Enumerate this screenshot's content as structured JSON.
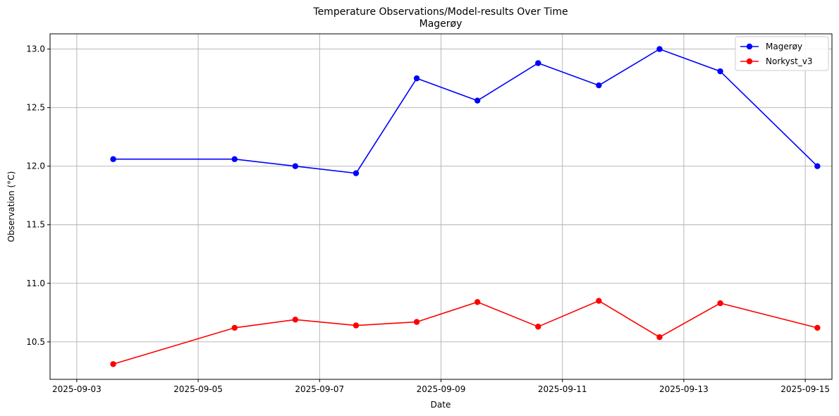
{
  "chart_data": {
    "type": "line",
    "title": "Temperature Observations/Model-results Over Time",
    "subtitle": "Magerøy",
    "xlabel": "Date",
    "ylabel": "Observation (°C)",
    "grid": true,
    "legend_position": "top-right",
    "xlim": [
      -0.44,
      12.44
    ],
    "ylim": [
      10.18,
      13.13
    ],
    "x_ticks": [
      {
        "pos": 0.0,
        "label": "2025-09-03"
      },
      {
        "pos": 2.0,
        "label": "2025-09-05"
      },
      {
        "pos": 4.0,
        "label": "2025-09-07"
      },
      {
        "pos": 6.0,
        "label": "2025-09-09"
      },
      {
        "pos": 8.0,
        "label": "2025-09-11"
      },
      {
        "pos": 10.0,
        "label": "2025-09-13"
      },
      {
        "pos": 12.0,
        "label": "2025-09-15"
      }
    ],
    "y_ticks": [
      10.5,
      11.0,
      11.5,
      12.0,
      12.5,
      13.0
    ],
    "y_tick_labels": [
      "10.5",
      "11.0",
      "11.5",
      "12.0",
      "12.5",
      "13.0"
    ],
    "series": [
      {
        "name": "Magerøy",
        "color": "#0000ff",
        "x": [
          0.6,
          2.6,
          3.6,
          4.6,
          5.6,
          6.6,
          7.6,
          8.6,
          9.6,
          10.6,
          12.2
        ],
        "values": [
          12.06,
          12.06,
          12.0,
          11.94,
          12.75,
          12.56,
          12.88,
          12.69,
          13.0,
          12.81,
          12.0
        ]
      },
      {
        "name": "Norkyst_v3",
        "color": "#ff0000",
        "x": [
          0.6,
          2.6,
          3.6,
          4.6,
          5.6,
          6.6,
          7.6,
          8.6,
          9.6,
          10.6,
          12.2
        ],
        "values": [
          10.31,
          10.62,
          10.69,
          10.64,
          10.67,
          10.84,
          10.63,
          10.85,
          10.54,
          10.83,
          10.62
        ]
      }
    ]
  }
}
